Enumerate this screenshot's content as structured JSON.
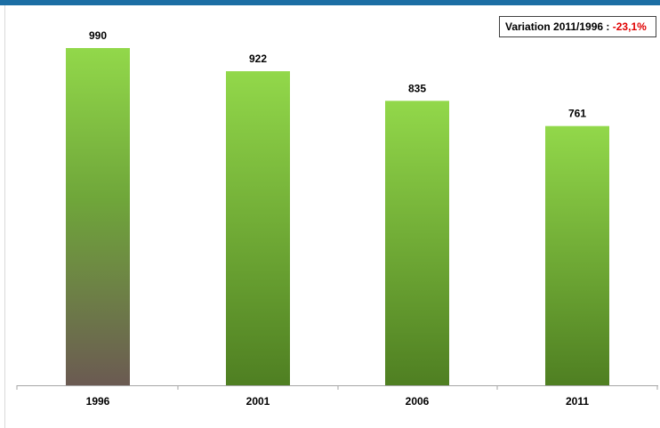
{
  "colors": {
    "header_bar": "#1c6ea4",
    "bar_top": "#92d84a",
    "bar_bottom": "#4f7f22",
    "highlight_bar_bottom": "#6b5a52",
    "variation_value": "#e00000"
  },
  "variation": {
    "label": "Variation 2011/1996 :",
    "value": "-23,1%"
  },
  "chart_data": {
    "type": "bar",
    "categories": [
      "1996",
      "2001",
      "2006",
      "2011"
    ],
    "values": [
      990,
      922,
      835,
      761
    ],
    "data_labels": [
      "990",
      "922",
      "835",
      "761"
    ],
    "title": "",
    "xlabel": "",
    "ylabel": "",
    "ylim": [
      0,
      990
    ],
    "grid": false,
    "legend": "none",
    "highlighted_category": "1996"
  }
}
